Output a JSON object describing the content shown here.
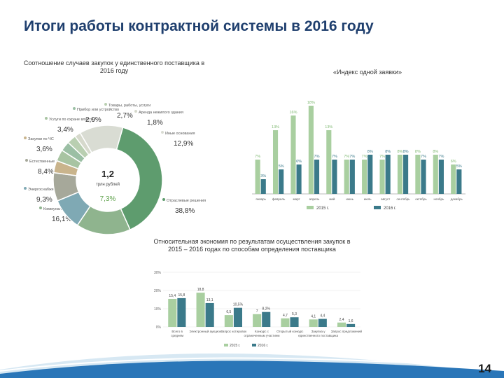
{
  "slide": {
    "title": "Итоги работы контрактной системы в 2016 году",
    "page_number": "14"
  },
  "chart_data": [
    {
      "id": "pie",
      "type": "pie",
      "title": "Соотношение случаев закупок у единственного поставщика в 2016 году",
      "center_value": "1,2",
      "center_unit": "трлн рублей",
      "slices": [
        {
          "label": "Отраслевые решения",
          "value": 38.8,
          "display": "38,8%",
          "color": "#5e9c6e"
        },
        {
          "label": "Коммунальные услуги",
          "value": 16.1,
          "display": "16,1%",
          "color": "#8fb48e"
        },
        {
          "label": "Энергоснабжение",
          "value": 9.3,
          "display": "9,3%",
          "color": "#7fa9b4"
        },
        {
          "label": "Естественные монополии",
          "value": 8.4,
          "display": "8,4%",
          "color": "#a6a89a"
        },
        {
          "label": "Закупки по ЧС",
          "value": 3.6,
          "display": "3,6%",
          "color": "#c9b48c"
        },
        {
          "label": "Услуги по охране власти",
          "value": 3.4,
          "display": "3,4%",
          "color": "#a8c4a2"
        },
        {
          "label": "Прибор или устройство",
          "value": 2.9,
          "display": "2,9%",
          "color": "#9bbfa4"
        },
        {
          "label": "Товары, работы, услуги",
          "value": 2.7,
          "display": "2,7%",
          "color": "#b9cfb1"
        },
        {
          "label": "Аренда нежилого здания",
          "value": 1.8,
          "display": "1,8%",
          "color": "#d6d9cc"
        },
        {
          "label": "Иные основания",
          "value": 12.9,
          "display": "12,9%",
          "color": "#d9dcd3"
        }
      ],
      "extra_label": "7,3%"
    },
    {
      "id": "index",
      "type": "bar",
      "title": "«Индекс одной заявки»",
      "categories": [
        "январь",
        "февраль",
        "март",
        "апрель",
        "май",
        "июнь",
        "июль",
        "август",
        "сентябрь",
        "октябрь",
        "ноябрь",
        "декабрь"
      ],
      "series": [
        {
          "name": "2015 г.",
          "color": "#a9cfa0",
          "values": [
            7,
            13,
            16,
            18,
            13,
            7,
            7,
            7,
            8,
            8,
            8,
            6
          ]
        },
        {
          "name": "2016 г.",
          "color": "#3b7a8a",
          "values": [
            3,
            5,
            6,
            7,
            7,
            7,
            8,
            8,
            8,
            7,
            7,
            5
          ]
        }
      ],
      "ylim": [
        0,
        20
      ]
    },
    {
      "id": "economy",
      "type": "bar",
      "title": "Относительная экономия по результатам осуществления закупок в 2015 – 2016 годах по способам определения поставщика",
      "categories": [
        "Всего в среднем",
        "Электронный аукцион",
        "Запрос котировок",
        "Конкурс с ограниченным участием",
        "Открытый конкурс",
        "Закупка у единственного поставщика",
        "Запрос предложений"
      ],
      "series": [
        {
          "name": "2015 г.",
          "color": "#a9cfa0",
          "values": [
            15.4,
            18.8,
            6.5,
            7.0,
            4.7,
            4.1,
            2.4
          ]
        },
        {
          "name": "2016 г.",
          "color": "#3b7a8a",
          "values": [
            15.8,
            13.1,
            10.5,
            8.2,
            5.3,
            4.4,
            1.6
          ]
        }
      ],
      "value_labels_2015": [
        "15,4",
        "18,8",
        "6,5",
        "7",
        "4,7",
        "4,1",
        "2,4"
      ],
      "value_labels_2016": [
        "15,8",
        "13,1",
        "10,5%",
        "8,2%",
        "5,3",
        "4,4",
        "1,6"
      ],
      "yticks": [
        "0%",
        "10%",
        "20%",
        "30%"
      ],
      "ylim": [
        0,
        30
      ]
    }
  ]
}
